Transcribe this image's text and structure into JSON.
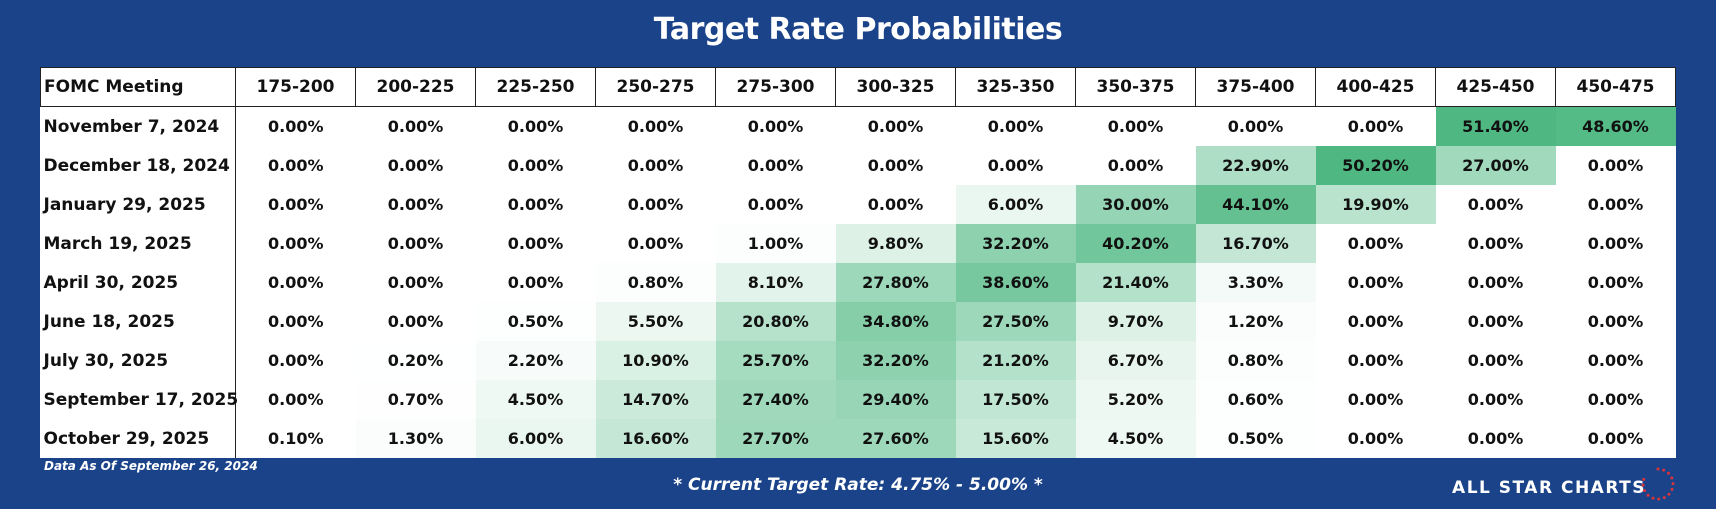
{
  "title": "Target Rate Probabilities",
  "footer": {
    "data_date": "Data As Of September 26, 2024",
    "current_rate": "* Current Target Rate: 4.75% - 5.00% *",
    "brand": "ALL STAR CHARTS"
  },
  "colors": {
    "background": "#1b4389",
    "heat_low": "#ffffff",
    "heat_high": "#4fb882",
    "brand_dots": "#d9343b"
  },
  "chart_data": {
    "type": "heatmap",
    "title": "Target Rate Probabilities",
    "row_header": "FOMC Meeting",
    "columns": [
      "175-200",
      "200-225",
      "225-250",
      "250-275",
      "275-300",
      "300-325",
      "325-350",
      "350-375",
      "375-400",
      "400-425",
      "425-450",
      "450-475"
    ],
    "rows": [
      {
        "meeting": "November 7, 2024",
        "values": [
          0,
          0,
          0,
          0,
          0,
          0,
          0,
          0,
          0,
          0,
          51.4,
          48.6
        ]
      },
      {
        "meeting": "December 18, 2024",
        "values": [
          0,
          0,
          0,
          0,
          0,
          0,
          0,
          0,
          22.9,
          50.2,
          27.0,
          0
        ]
      },
      {
        "meeting": "January 29, 2025",
        "values": [
          0,
          0,
          0,
          0,
          0,
          0,
          6.0,
          30.0,
          44.1,
          19.9,
          0,
          0
        ]
      },
      {
        "meeting": "March 19, 2025",
        "values": [
          0,
          0,
          0,
          0,
          1.0,
          9.8,
          32.2,
          40.2,
          16.7,
          0,
          0,
          0
        ]
      },
      {
        "meeting": "April 30, 2025",
        "values": [
          0,
          0,
          0,
          0.8,
          8.1,
          27.8,
          38.6,
          21.4,
          3.3,
          0,
          0,
          0
        ]
      },
      {
        "meeting": "June 18, 2025",
        "values": [
          0,
          0,
          0.5,
          5.5,
          20.8,
          34.8,
          27.5,
          9.7,
          1.2,
          0,
          0,
          0
        ]
      },
      {
        "meeting": "July 30, 2025",
        "values": [
          0,
          0.2,
          2.2,
          10.9,
          25.7,
          32.2,
          21.2,
          6.7,
          0.8,
          0,
          0,
          0
        ]
      },
      {
        "meeting": "September 17, 2025",
        "values": [
          0,
          0.7,
          4.5,
          14.7,
          27.4,
          29.4,
          17.5,
          5.2,
          0.6,
          0,
          0,
          0
        ]
      },
      {
        "meeting": "October 29, 2025",
        "values": [
          0.1,
          1.3,
          6.0,
          16.6,
          27.7,
          27.6,
          15.6,
          4.5,
          0.5,
          0,
          0,
          0
        ]
      }
    ],
    "value_format": "percent_2dp"
  }
}
